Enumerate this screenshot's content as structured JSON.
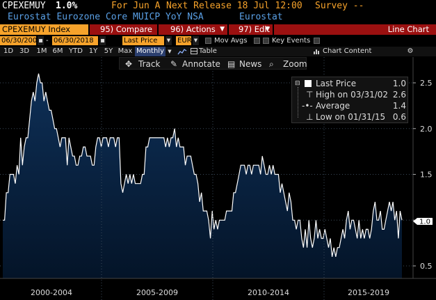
{
  "header": {
    "ticker": "CPEXEMUY",
    "last_value": "1.0%",
    "for_label": "For Jun A",
    "next_release": "Next Release 18 Jul 12:00",
    "survey": "Survey --",
    "description": "Eurostat Eurozone Core MUICP YoY NSA",
    "source": "Eurostat"
  },
  "menubar": {
    "ticker_index": "CPEXEMUY Index",
    "compare": "95) Compare",
    "actions": "96) Actions",
    "edit": "97) Edit",
    "chart_type": "Line Chart"
  },
  "daterow": {
    "start_date": "06/30/2000",
    "end_date": "06/30/2018",
    "price_field": "Last Price",
    "currency": "EUR",
    "mov_avgs": "Mov Avgs",
    "key_events": "Key Events"
  },
  "periods": {
    "buttons": [
      "1D",
      "3D",
      "1M",
      "6M",
      "YTD",
      "1Y",
      "5Y",
      "Max"
    ],
    "frequency": "Monthly",
    "table": "Table",
    "chart_content": "Chart Content"
  },
  "toolbar": {
    "track": "Track",
    "annotate": "Annotate",
    "news": "News",
    "zoom": "Zoom"
  },
  "legend": {
    "last_label": "Last Price",
    "last_value": "1.0",
    "high_label": "High on 03/31/02",
    "high_value": "2.6",
    "avg_label": "Average",
    "avg_value": "1.4",
    "low_label": "Low on 01/31/15",
    "low_value": "0.6"
  },
  "colors": {
    "orange": "#f7a32b",
    "red_bar": "#9b1010",
    "fill_top": "#0e3058",
    "fill_bottom": "#041428",
    "line": "#ffffff"
  },
  "chart_data": {
    "type": "area",
    "x_start": "2000-06",
    "x_step": "month",
    "ylim": [
      0.4,
      2.6
    ],
    "yticks": [
      0.5,
      1.0,
      1.5,
      2.0,
      2.5
    ],
    "xtick_labels": [
      "2000-2004",
      "2005-2009",
      "2010-2014",
      "2015-2019"
    ],
    "last_marker": "1.0",
    "values": [
      1.0,
      1.0,
      1.3,
      1.3,
      1.5,
      1.5,
      1.5,
      1.4,
      1.6,
      1.5,
      1.9,
      1.6,
      1.8,
      1.9,
      1.9,
      2.1,
      2.3,
      2.4,
      2.3,
      2.5,
      2.6,
      2.5,
      2.5,
      2.3,
      2.4,
      2.3,
      2.2,
      2.2,
      2.1,
      2.0,
      2.0,
      1.9,
      1.8,
      1.9,
      1.9,
      1.9,
      1.6,
      1.9,
      1.8,
      1.7,
      1.7,
      1.6,
      1.6,
      1.7,
      1.7,
      1.8,
      1.8,
      1.7,
      1.7,
      1.7,
      1.6,
      1.6,
      1.8,
      1.9,
      1.9,
      1.8,
      1.9,
      1.9,
      1.9,
      1.8,
      1.9,
      1.9,
      1.9,
      1.8,
      1.9,
      1.9,
      1.4,
      1.3,
      1.4,
      1.5,
      1.4,
      1.5,
      1.4,
      1.5,
      1.4,
      1.4,
      1.4,
      1.4,
      1.5,
      1.5,
      1.8,
      1.8,
      1.9,
      1.9,
      1.9,
      1.9,
      1.9,
      1.9,
      1.9,
      1.9,
      1.9,
      1.8,
      1.9,
      1.8,
      1.9,
      1.9,
      2.0,
      1.8,
      1.9,
      1.8,
      1.8,
      1.8,
      1.6,
      1.7,
      1.7,
      1.7,
      1.6,
      1.5,
      1.5,
      1.4,
      1.2,
      1.3,
      1.1,
      1.1,
      1.1,
      1.0,
      0.8,
      1.1,
      0.9,
      1.0,
      0.9,
      1.0,
      1.0,
      1.0,
      1.0,
      1.1,
      1.1,
      1.1,
      1.1,
      1.3,
      1.3,
      1.4,
      1.5,
      1.6,
      1.6,
      1.6,
      1.5,
      1.6,
      1.6,
      1.5,
      1.6,
      1.6,
      1.6,
      1.6,
      1.5,
      1.7,
      1.6,
      1.5,
      1.5,
      1.6,
      1.5,
      1.6,
      1.5,
      1.5,
      1.5,
      1.3,
      1.4,
      1.3,
      1.2,
      1.1,
      1.3,
      1.2,
      1.0,
      1.0,
      0.9,
      1.0,
      1.0,
      0.8,
      0.7,
      0.9,
      0.7,
      1.0,
      0.8,
      0.7,
      0.8,
      1.0,
      0.8,
      0.9,
      0.8,
      0.8,
      0.9,
      0.8,
      0.7,
      0.8,
      0.6,
      0.7,
      0.6,
      0.7,
      0.7,
      0.8,
      0.9,
      0.8,
      1.0,
      1.1,
      0.9,
      1.0,
      1.0,
      0.9,
      0.8,
      1.0,
      0.8,
      0.9,
      0.8,
      0.9,
      0.9,
      0.8,
      0.9,
      1.1,
      1.2,
      1.0,
      1.0,
      1.1,
      0.9,
      0.9,
      1.0,
      1.1,
      1.2,
      1.1,
      1.2,
      1.0,
      1.1,
      0.8,
      1.1,
      1.0
    ]
  }
}
